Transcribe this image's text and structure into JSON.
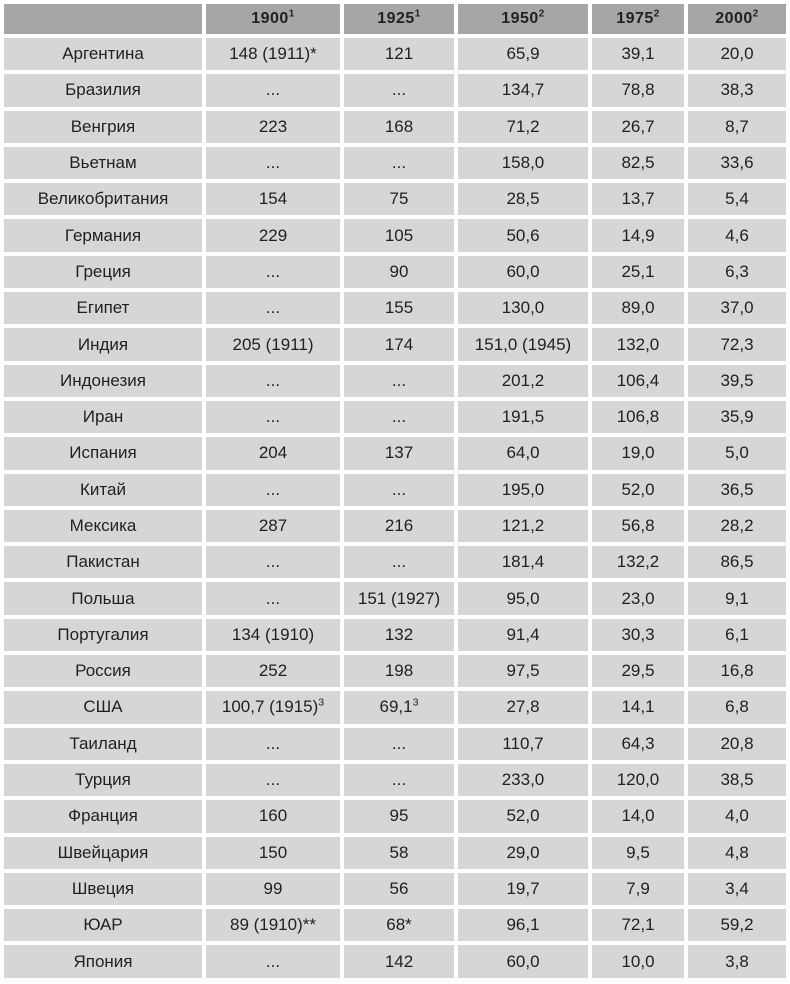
{
  "table": {
    "corner_label": "",
    "columns": [
      {
        "label": "1900",
        "sup": "1"
      },
      {
        "label": "1925",
        "sup": "1"
      },
      {
        "label": "1950",
        "sup": "2"
      },
      {
        "label": "1975",
        "sup": "2"
      },
      {
        "label": "2000",
        "sup": "2"
      }
    ],
    "rows": [
      {
        "country": "Аргентина",
        "values": [
          "148 (1911)*",
          "121",
          "65,9",
          "39,1",
          "20,0"
        ]
      },
      {
        "country": "Бразилия",
        "values": [
          "...",
          "...",
          "134,7",
          "78,8",
          "38,3"
        ]
      },
      {
        "country": "Венгрия",
        "values": [
          "223",
          "168",
          "71,2",
          "26,7",
          "8,7"
        ]
      },
      {
        "country": "Вьетнам",
        "values": [
          "...",
          "...",
          "158,0",
          "82,5",
          "33,6"
        ]
      },
      {
        "country": "Великобритания",
        "values": [
          "154",
          "75",
          "28,5",
          "13,7",
          "5,4"
        ]
      },
      {
        "country": "Германия",
        "values": [
          "229",
          "105",
          "50,6",
          "14,9",
          "4,6"
        ]
      },
      {
        "country": "Греция",
        "values": [
          "...",
          "90",
          "60,0",
          "25,1",
          "6,3"
        ]
      },
      {
        "country": "Египет",
        "values": [
          "...",
          "155",
          "130,0",
          "89,0",
          "37,0"
        ]
      },
      {
        "country": "Индия",
        "values": [
          "205 (1911)",
          "174",
          "151,0 (1945)",
          "132,0",
          "72,3"
        ]
      },
      {
        "country": "Индонезия",
        "values": [
          "...",
          "...",
          "201,2",
          "106,4",
          "39,5"
        ]
      },
      {
        "country": "Иран",
        "values": [
          "...",
          "...",
          "191,5",
          "106,8",
          "35,9"
        ]
      },
      {
        "country": "Испания",
        "values": [
          "204",
          "137",
          "64,0",
          "19,0",
          "5,0"
        ]
      },
      {
        "country": "Китай",
        "values": [
          "...",
          "...",
          "195,0",
          "52,0",
          "36,5"
        ]
      },
      {
        "country": "Мексика",
        "values": [
          "287",
          "216",
          "121,2",
          "56,8",
          "28,2"
        ]
      },
      {
        "country": "Пакистан",
        "values": [
          "...",
          "...",
          "181,4",
          "132,2",
          "86,5"
        ]
      },
      {
        "country": "Польша",
        "values": [
          "...",
          "151 (1927)",
          "95,0",
          "23,0",
          "9,1"
        ]
      },
      {
        "country": "Португалия",
        "values": [
          "134 (1910)",
          "132",
          "91,4",
          "30,3",
          "6,1"
        ]
      },
      {
        "country": "Россия",
        "values": [
          "252",
          "198",
          "97,5",
          "29,5",
          "16,8"
        ]
      },
      {
        "country": "США",
        "values": [
          "100,7 (1915)",
          "69,1",
          "27,8",
          "14,1",
          "6,8"
        ],
        "value_sups": [
          "3",
          "3",
          "",
          "",
          ""
        ]
      },
      {
        "country": "Таиланд",
        "values": [
          "...",
          "...",
          "110,7",
          "64,3",
          "20,8"
        ]
      },
      {
        "country": "Турция",
        "values": [
          "...",
          "...",
          "233,0",
          "120,0",
          "38,5"
        ]
      },
      {
        "country": "Франция",
        "values": [
          "160",
          "95",
          "52,0",
          "14,0",
          "4,0"
        ]
      },
      {
        "country": "Швейцария",
        "values": [
          "150",
          "58",
          "29,0",
          "9,5",
          "4,8"
        ]
      },
      {
        "country": "Швеция",
        "values": [
          "99",
          "56",
          "19,7",
          "7,9",
          "3,4"
        ]
      },
      {
        "country": "ЮАР",
        "values": [
          "89 (1910)**",
          "68*",
          "96,1",
          "72,1",
          "59,2"
        ]
      },
      {
        "country": "Япония",
        "values": [
          "...",
          "142",
          "60,0",
          "10,0",
          "3,8"
        ]
      }
    ]
  },
  "colors": {
    "header_bg": "#a6a6a6",
    "cell_bg": "#d6d6d6",
    "gap": "#ffffff",
    "text": "#212121"
  }
}
